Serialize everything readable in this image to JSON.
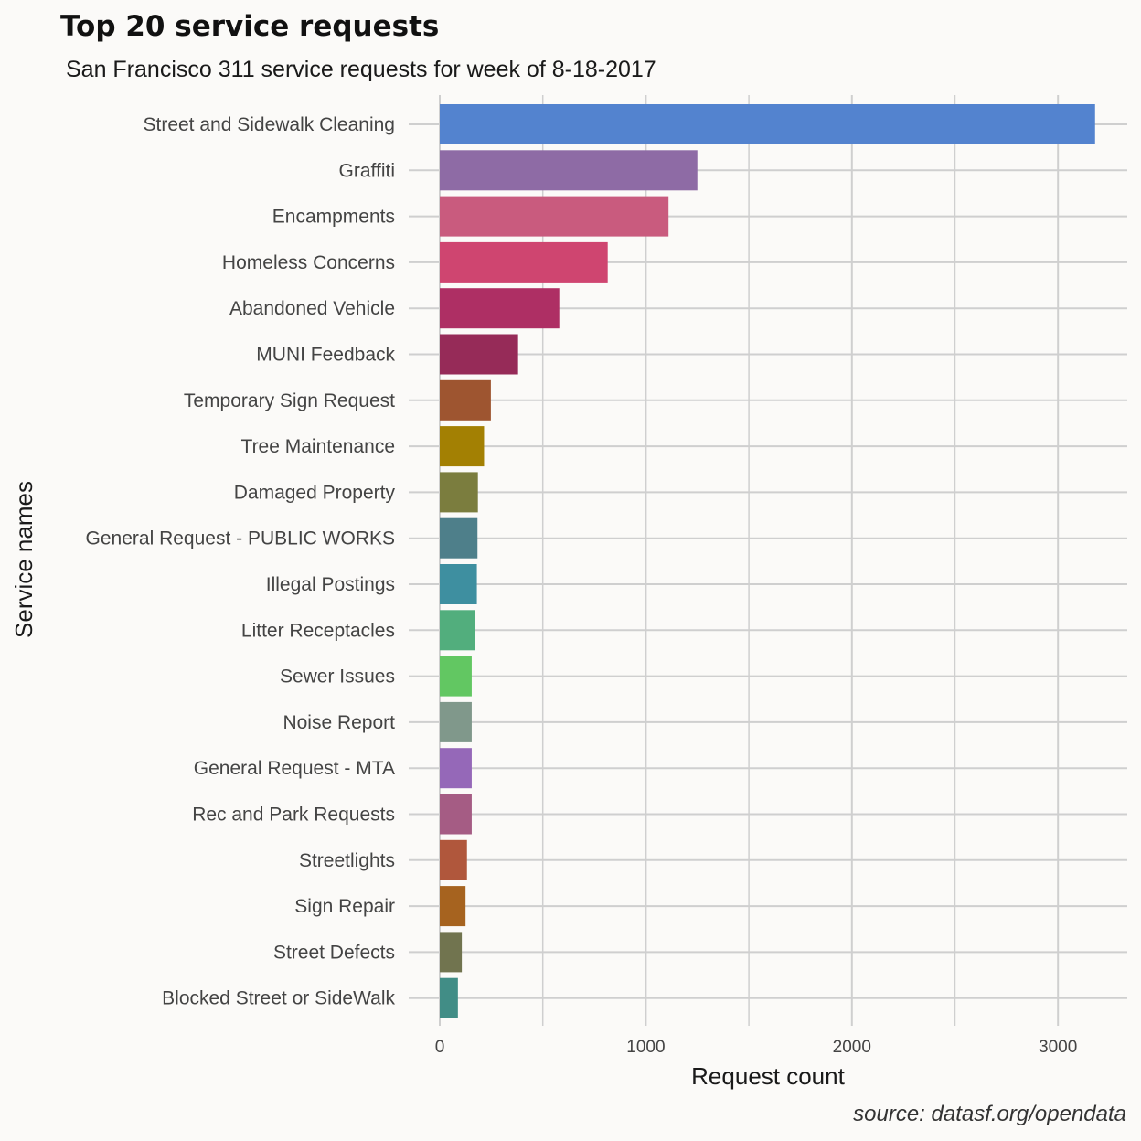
{
  "chart_data": {
    "type": "bar",
    "orientation": "horizontal",
    "title": "Top 20 service requests",
    "subtitle": "San Francisco 311 service requests for week of 8-18-2017",
    "caption": "source: datasf.org/opendata",
    "xlabel": "Request count",
    "ylabel": "Service names",
    "xlim": [
      0,
      3300
    ],
    "x_ticks": [
      0,
      1000,
      2000,
      3000
    ],
    "x_tick_labels": [
      "0",
      "1000",
      "2000",
      "3000"
    ],
    "grid": true,
    "legend": "none",
    "categories": [
      "Street and Sidewalk Cleaning",
      "Graffiti",
      "Encampments",
      "Homeless Concerns",
      "Abandoned Vehicle",
      "MUNI Feedback",
      "Temporary Sign Request",
      "Tree Maintenance",
      "Damaged Property",
      "General Request - PUBLIC WORKS",
      "Illegal Postings",
      "Litter Receptacles",
      "Sewer Issues",
      "Noise Report",
      "General Request - MTA",
      "Rec and Park Requests",
      "Streetlights",
      "Sign Repair",
      "Street Defects",
      "Blocked Street or SideWalk"
    ],
    "values": [
      3180,
      1250,
      1110,
      815,
      580,
      380,
      248,
      215,
      185,
      183,
      180,
      172,
      155,
      155,
      155,
      155,
      132,
      125,
      107,
      88
    ],
    "colors": [
      "#5383cf",
      "#8e6ba5",
      "#c95b7e",
      "#cf4570",
      "#ae2f64",
      "#962b58",
      "#9e5530",
      "#a38003",
      "#7b7d3e",
      "#4e7f8a",
      "#3e8fa0",
      "#52ae7d",
      "#62c762",
      "#80988b",
      "#9568b8",
      "#a55c84",
      "#b0573c",
      "#a6631f",
      "#71744f",
      "#418d86"
    ]
  }
}
